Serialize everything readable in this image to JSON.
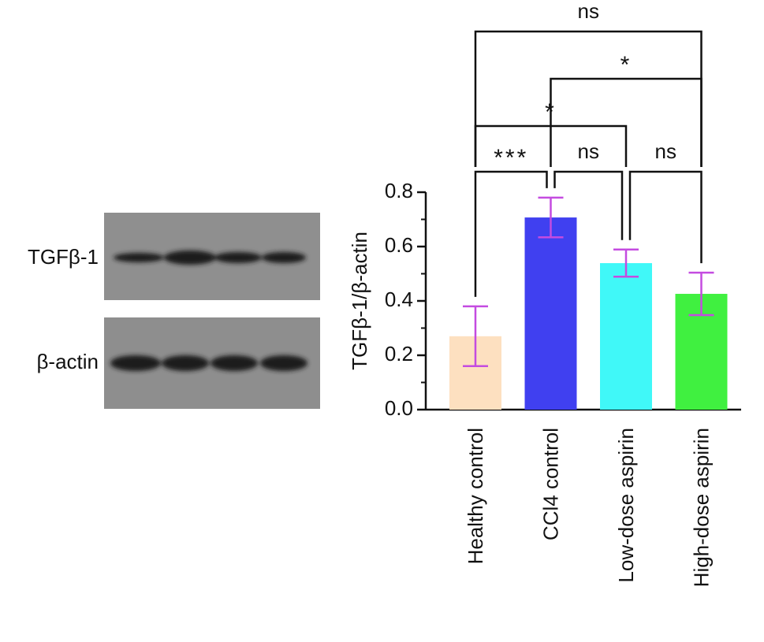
{
  "blot": {
    "labels": [
      "TGFβ-1",
      "β-actin"
    ]
  },
  "chart_data": {
    "type": "bar",
    "y_label": "TGFβ-1/β-actin",
    "categories": [
      "Healthy control",
      "CCl4 control",
      "Low-dose aspirin",
      "High-dose aspirin"
    ],
    "values": [
      0.27,
      0.707,
      0.539,
      0.426
    ],
    "errors": [
      0.11,
      0.073,
      0.05,
      0.078
    ],
    "colors": [
      "#fde0c0",
      "#4040f0",
      "#40f8f8",
      "#40f040"
    ],
    "error_color": "#c44be0",
    "ylim": [
      0,
      0.8
    ],
    "yticks": [
      {
        "value": 0,
        "label": "0.0"
      },
      0.2,
      0.4,
      0.6,
      0.8
    ],
    "minor_yticks": [
      0.1,
      0.3,
      0.5,
      0.7
    ],
    "significance": [
      {
        "pair": [
          0,
          1
        ],
        "label": "***"
      },
      {
        "pair": [
          1,
          2
        ],
        "label": "ns"
      },
      {
        "pair": [
          2,
          3
        ],
        "label": "ns"
      },
      {
        "pair": [
          0,
          2
        ],
        "label": "*"
      },
      {
        "pair": [
          1,
          3
        ],
        "label": "*"
      },
      {
        "pair": [
          0,
          3
        ],
        "label": "ns"
      }
    ]
  }
}
